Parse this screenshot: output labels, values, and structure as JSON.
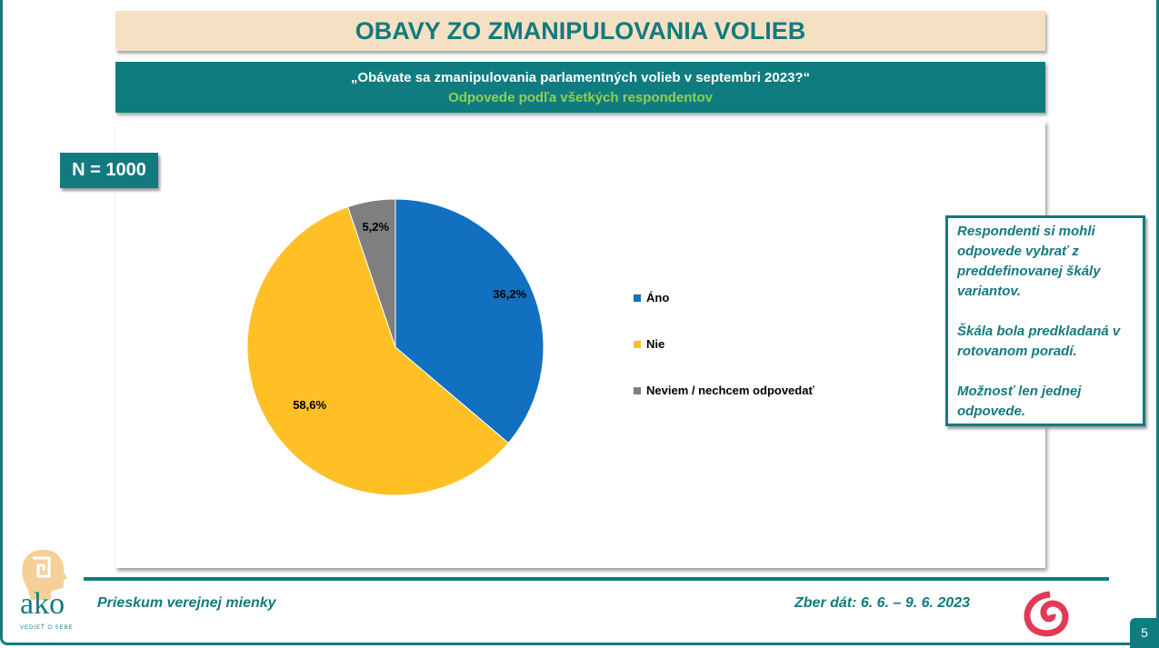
{
  "title": "OBAVY ZO ZMANIPULOVANIA VOLIEB",
  "question": "„Obávate sa zmanipulovania parlamentných volieb v septembri 2023?“",
  "subtitle": "Odpovede podľa všetkých respondentov",
  "sample": "N = 1000",
  "note": [
    "Respondenti si mohli odpovede vybrať z preddefinovanej škály variantov.",
    "Škála bola predkladaná v rotovanom poradí.",
    "Možnosť len jednej odpovede."
  ],
  "footer": {
    "left": "Prieskum verejnej mienky",
    "right": "Zber dát: 6. 6. – 9. 6. 2023",
    "page": "5",
    "logo_text": "ako",
    "logo_tagline": "VEDIEŤ O SEBE"
  },
  "chart_data": {
    "type": "pie",
    "title": "",
    "categories": [
      "Áno",
      "Nie",
      "Neviem / nechcem odpovedať"
    ],
    "values": [
      36.2,
      58.6,
      5.2
    ],
    "labels": [
      "36,2%",
      "58,6%",
      "5,2%"
    ],
    "colors": [
      "#1170C0",
      "#FFC026",
      "#7F7F7F"
    ],
    "legend": "right"
  }
}
